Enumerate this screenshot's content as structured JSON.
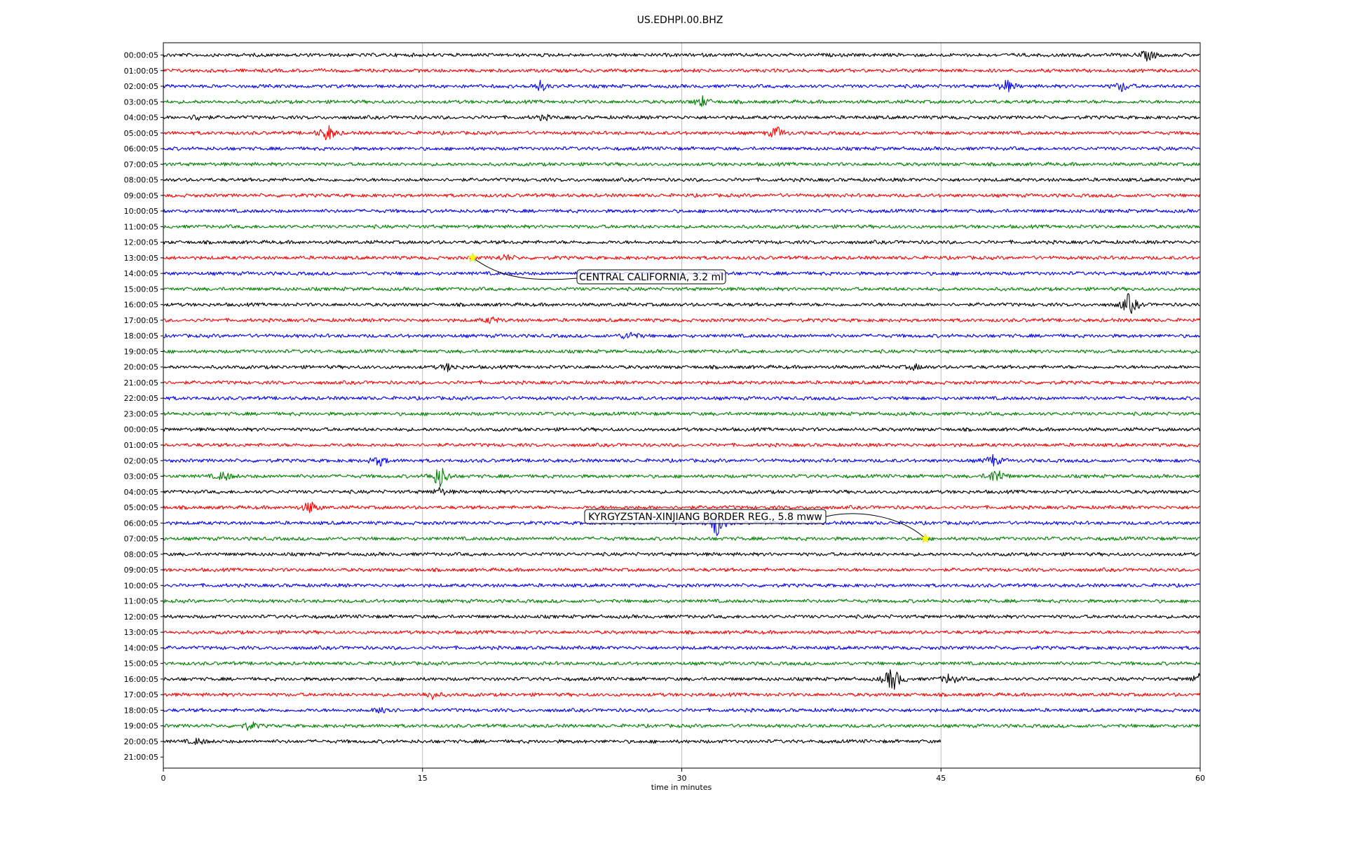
{
  "chart_data": {
    "type": "line",
    "title": "US.EDHPI.00.BHZ",
    "xlabel": "time in minutes",
    "ylabel": "",
    "xlim": [
      0,
      60
    ],
    "x_ticks": [
      0,
      15,
      30,
      45,
      60
    ],
    "grid": "vertical lines at x ticks",
    "line_colors": [
      "#000000",
      "#ff0000",
      "#0000ff",
      "#008000"
    ],
    "row_labels": [
      "00:00:05",
      "01:00:05",
      "02:00:05",
      "03:00:05",
      "04:00:05",
      "05:00:05",
      "06:00:05",
      "07:00:05",
      "08:00:05",
      "09:00:05",
      "10:00:05",
      "11:00:05",
      "12:00:05",
      "13:00:05",
      "14:00:05",
      "15:00:05",
      "16:00:05",
      "17:00:05",
      "18:00:05",
      "19:00:05",
      "20:00:05",
      "21:00:05",
      "22:00:05",
      "23:00:05",
      "00:00:05",
      "01:00:05",
      "02:00:05",
      "03:00:05",
      "04:00:05",
      "05:00:05",
      "06:00:05",
      "07:00:05",
      "08:00:05",
      "09:00:05",
      "10:00:05",
      "11:00:05",
      "12:00:05",
      "13:00:05",
      "14:00:05",
      "15:00:05",
      "16:00:05",
      "17:00:05",
      "18:00:05",
      "19:00:05",
      "20:00:05",
      "21:00:05"
    ],
    "traces_end_minute": [
      60,
      60,
      60,
      60,
      60,
      60,
      60,
      60,
      60,
      60,
      60,
      60,
      60,
      60,
      60,
      60,
      60,
      60,
      60,
      60,
      60,
      60,
      60,
      60,
      60,
      60,
      60,
      60,
      60,
      60,
      60,
      60,
      60,
      60,
      60,
      60,
      60,
      60,
      60,
      60,
      60,
      60,
      60,
      60,
      45,
      0
    ],
    "bursts": [
      {
        "row": 0,
        "minute": 57.0,
        "amp": 0.9
      },
      {
        "row": 2,
        "minute": 21.8,
        "amp": 0.8
      },
      {
        "row": 2,
        "minute": 48.8,
        "amp": 1.0
      },
      {
        "row": 2,
        "minute": 55.5,
        "amp": 0.8
      },
      {
        "row": 3,
        "minute": 31.2,
        "amp": 0.8
      },
      {
        "row": 4,
        "minute": 2.0,
        "amp": 0.5
      },
      {
        "row": 4,
        "minute": 22.0,
        "amp": 0.4
      },
      {
        "row": 5,
        "minute": 9.5,
        "amp": 1.4
      },
      {
        "row": 5,
        "minute": 35.5,
        "amp": 1.0
      },
      {
        "row": 13,
        "minute": 19.8,
        "amp": 0.5
      },
      {
        "row": 16,
        "minute": 55.9,
        "amp": 1.8
      },
      {
        "row": 17,
        "minute": 19.0,
        "amp": 0.5
      },
      {
        "row": 18,
        "minute": 27.0,
        "amp": 0.7
      },
      {
        "row": 20,
        "minute": 16.5,
        "amp": 0.6
      },
      {
        "row": 20,
        "minute": 43.5,
        "amp": 0.4
      },
      {
        "row": 26,
        "minute": 12.5,
        "amp": 0.8
      },
      {
        "row": 26,
        "minute": 48.0,
        "amp": 0.9
      },
      {
        "row": 27,
        "minute": 3.5,
        "amp": 0.8
      },
      {
        "row": 27,
        "minute": 16.0,
        "amp": 2.0
      },
      {
        "row": 27,
        "minute": 48.2,
        "amp": 1.4
      },
      {
        "row": 28,
        "minute": 16.0,
        "amp": 0.6
      },
      {
        "row": 29,
        "minute": 8.5,
        "amp": 1.0
      },
      {
        "row": 30,
        "minute": 32.0,
        "amp": 2.2
      },
      {
        "row": 40,
        "minute": 42.2,
        "amp": 2.2
      },
      {
        "row": 40,
        "minute": 45.5,
        "amp": 0.9
      },
      {
        "row": 40,
        "minute": 60.0,
        "amp": 1.0
      },
      {
        "row": 41,
        "minute": 15.5,
        "amp": 0.7
      },
      {
        "row": 42,
        "minute": 12.8,
        "amp": 0.8
      },
      {
        "row": 43,
        "minute": 5.0,
        "amp": 0.7
      },
      {
        "row": 44,
        "minute": 2.0,
        "amp": 0.5
      }
    ],
    "events": [
      {
        "label": "CENTRAL CALIFORNIA, 3.2 ml",
        "row": 13,
        "minute": 17.9
      },
      {
        "label": "KYRGYZSTAN-XINJIANG BORDER REG., 5.8 mww",
        "row": 31,
        "minute": 44.1
      }
    ]
  }
}
